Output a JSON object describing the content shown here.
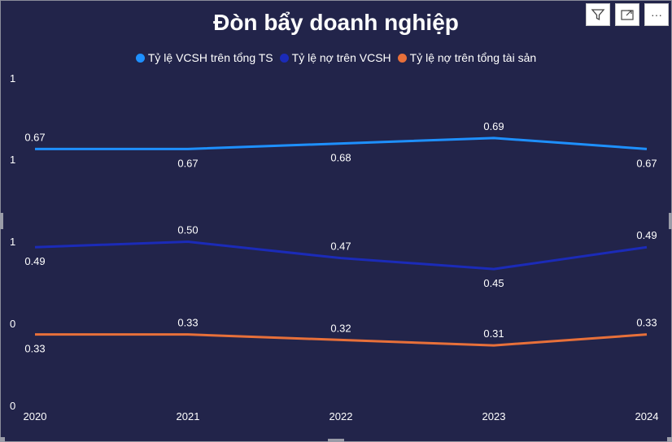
{
  "chart_data": {
    "type": "line",
    "title": "Đòn bẩy doanh nghiệp",
    "categories": [
      "2020",
      "2021",
      "2022",
      "2023",
      "2024"
    ],
    "y_tick_labels": [
      "0",
      "0",
      "1",
      "1",
      "1"
    ],
    "ylim": [
      0.2,
      0.8
    ],
    "grid": false,
    "legend_position": "top-center",
    "series": [
      {
        "name": "Tỷ lệ VCSH trên tổng TS",
        "color": "#1e90ff",
        "values": [
          0.67,
          0.67,
          0.68,
          0.69,
          0.67
        ],
        "labels": [
          "0.67",
          "0.67",
          "0.68",
          "0.69",
          "0.67"
        ],
        "label_pos": [
          "above",
          "below",
          "below",
          "above",
          "below"
        ]
      },
      {
        "name": "Tỷ lệ nợ trên VCSH",
        "color": "#1b2bb8",
        "values": [
          0.49,
          0.5,
          0.47,
          0.45,
          0.49
        ],
        "labels": [
          "0.49",
          "0.50",
          "0.47",
          "0.45",
          "0.49"
        ],
        "label_pos": [
          "below",
          "above",
          "above",
          "below",
          "above"
        ]
      },
      {
        "name": "Tỷ lệ nợ trên tổng tài sản",
        "color": "#e8703a",
        "values": [
          0.33,
          0.33,
          0.32,
          0.31,
          0.33
        ],
        "labels": [
          "0.33",
          "0.33",
          "0.32",
          "0.31",
          "0.33"
        ],
        "label_pos": [
          "below",
          "above",
          "above",
          "above",
          "above"
        ]
      }
    ]
  },
  "toolbar": {
    "filter_icon": "filter-icon",
    "focus_icon": "focus-mode-icon",
    "more_label": "···"
  }
}
